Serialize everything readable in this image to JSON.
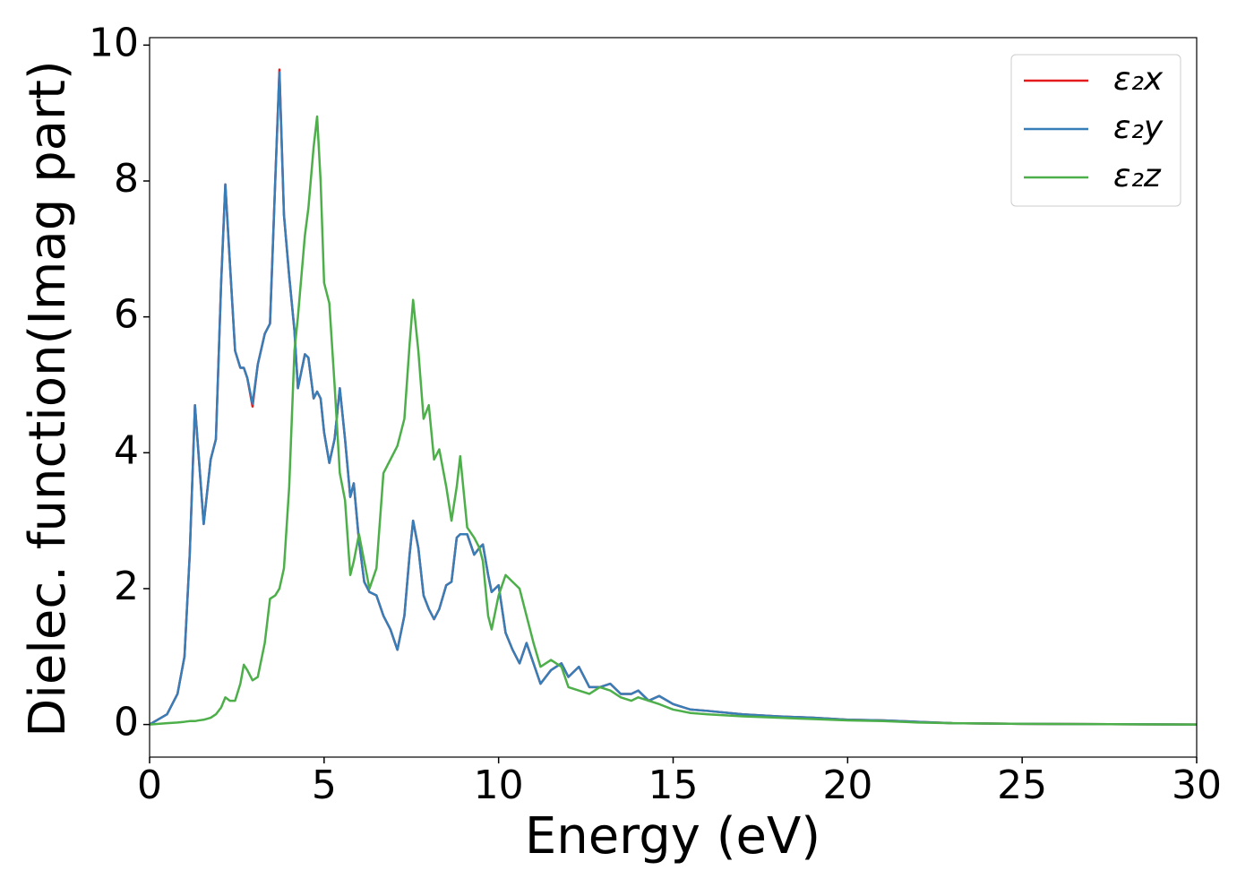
{
  "chart_data": {
    "type": "line",
    "xlabel": "Energy (eV)",
    "ylabel": "Dielec. function(Imag part)",
    "x": [
      0,
      0.5,
      0.8,
      1.0,
      1.15,
      1.3,
      1.4,
      1.55,
      1.75,
      1.9,
      2.05,
      2.17,
      2.3,
      2.45,
      2.6,
      2.7,
      2.8,
      2.95,
      3.1,
      3.3,
      3.45,
      3.6,
      3.72,
      3.85,
      4.0,
      4.15,
      4.25,
      4.45,
      4.55,
      4.7,
      4.8,
      4.9,
      5.0,
      5.15,
      5.3,
      5.45,
      5.6,
      5.75,
      5.85,
      6.0,
      6.15,
      6.3,
      6.5,
      6.7,
      6.9,
      7.1,
      7.3,
      7.45,
      7.55,
      7.7,
      7.85,
      8.0,
      8.15,
      8.3,
      8.5,
      8.65,
      8.8,
      8.9,
      9.1,
      9.3,
      9.45,
      9.55,
      9.7,
      9.8,
      10.0,
      10.2,
      10.4,
      10.6,
      10.8,
      11.0,
      11.2,
      11.5,
      11.8,
      12.0,
      12.3,
      12.6,
      12.9,
      13.2,
      13.5,
      13.8,
      14.0,
      14.3,
      14.6,
      15.0,
      15.5,
      16.0,
      17.0,
      18.0,
      19.0,
      20.0,
      21.0,
      22.0,
      23.0,
      25.0,
      30.0
    ],
    "series": [
      {
        "name": "ε₂x",
        "color": "#e41a1c",
        "values": [
          0,
          0.15,
          0.45,
          1.0,
          2.5,
          4.7,
          4.0,
          2.95,
          3.9,
          4.2,
          6.5,
          7.95,
          6.8,
          5.5,
          5.25,
          5.25,
          5.1,
          4.68,
          5.3,
          5.75,
          5.9,
          8.0,
          9.64,
          7.5,
          6.6,
          5.8,
          4.95,
          5.45,
          5.4,
          4.8,
          4.9,
          4.8,
          4.3,
          3.85,
          4.2,
          4.95,
          4.2,
          3.35,
          3.55,
          2.7,
          2.1,
          1.95,
          1.9,
          1.6,
          1.4,
          1.1,
          1.6,
          2.5,
          3.0,
          2.6,
          1.9,
          1.7,
          1.55,
          1.7,
          2.05,
          2.1,
          2.75,
          2.8,
          2.8,
          2.5,
          2.6,
          2.65,
          2.2,
          1.95,
          2.05,
          1.35,
          1.1,
          0.9,
          1.2,
          0.9,
          0.6,
          0.8,
          0.9,
          0.7,
          0.85,
          0.55,
          0.55,
          0.6,
          0.45,
          0.45,
          0.5,
          0.35,
          0.42,
          0.3,
          0.22,
          0.2,
          0.15,
          0.12,
          0.1,
          0.07,
          0.06,
          0.04,
          0.02,
          0.01,
          0
        ]
      },
      {
        "name": "ε₂y",
        "color": "#377eb8",
        "values": [
          0,
          0.15,
          0.45,
          1.0,
          2.5,
          4.7,
          4.0,
          2.95,
          3.9,
          4.2,
          6.5,
          7.95,
          6.8,
          5.5,
          5.25,
          5.25,
          5.1,
          4.72,
          5.3,
          5.75,
          5.9,
          8.0,
          9.6,
          7.5,
          6.6,
          5.8,
          4.95,
          5.45,
          5.4,
          4.8,
          4.9,
          4.8,
          4.3,
          3.85,
          4.2,
          4.95,
          4.2,
          3.35,
          3.55,
          2.7,
          2.1,
          1.95,
          1.9,
          1.6,
          1.4,
          1.1,
          1.6,
          2.5,
          3.0,
          2.6,
          1.9,
          1.7,
          1.55,
          1.7,
          2.05,
          2.1,
          2.75,
          2.8,
          2.8,
          2.5,
          2.6,
          2.65,
          2.2,
          1.95,
          2.05,
          1.35,
          1.1,
          0.9,
          1.2,
          0.9,
          0.6,
          0.8,
          0.9,
          0.7,
          0.85,
          0.55,
          0.55,
          0.6,
          0.45,
          0.45,
          0.5,
          0.35,
          0.42,
          0.3,
          0.22,
          0.2,
          0.15,
          0.12,
          0.1,
          0.07,
          0.06,
          0.04,
          0.02,
          0.01,
          0
        ]
      },
      {
        "name": "ε₂z",
        "color": "#4daf4a",
        "values": [
          0,
          0.02,
          0.03,
          0.04,
          0.05,
          0.05,
          0.06,
          0.07,
          0.1,
          0.15,
          0.25,
          0.4,
          0.35,
          0.35,
          0.6,
          0.88,
          0.8,
          0.65,
          0.7,
          1.2,
          1.85,
          1.9,
          2.0,
          2.3,
          3.5,
          5.5,
          6.0,
          7.2,
          7.6,
          8.5,
          8.95,
          8.0,
          6.5,
          6.2,
          5.0,
          3.7,
          3.3,
          2.2,
          2.4,
          2.8,
          2.4,
          2.0,
          2.3,
          3.7,
          3.9,
          4.1,
          4.5,
          5.6,
          6.25,
          5.5,
          4.5,
          4.7,
          3.9,
          4.05,
          3.5,
          3.0,
          3.5,
          3.95,
          2.9,
          2.75,
          2.6,
          2.4,
          1.6,
          1.4,
          1.9,
          2.2,
          2.1,
          2.0,
          1.6,
          1.2,
          0.85,
          0.95,
          0.85,
          0.55,
          0.5,
          0.45,
          0.55,
          0.5,
          0.4,
          0.35,
          0.4,
          0.35,
          0.3,
          0.22,
          0.17,
          0.15,
          0.12,
          0.1,
          0.08,
          0.06,
          0.05,
          0.03,
          0.02,
          0.01,
          0
        ]
      }
    ],
    "xlim": [
      0,
      30
    ],
    "xticks": [
      0,
      5,
      10,
      15,
      20,
      25,
      30
    ],
    "ylim": [
      -0.48,
      10.11
    ],
    "yticks": [
      0,
      2,
      4,
      6,
      8,
      10
    ],
    "grid": false,
    "legend": "upper right"
  }
}
